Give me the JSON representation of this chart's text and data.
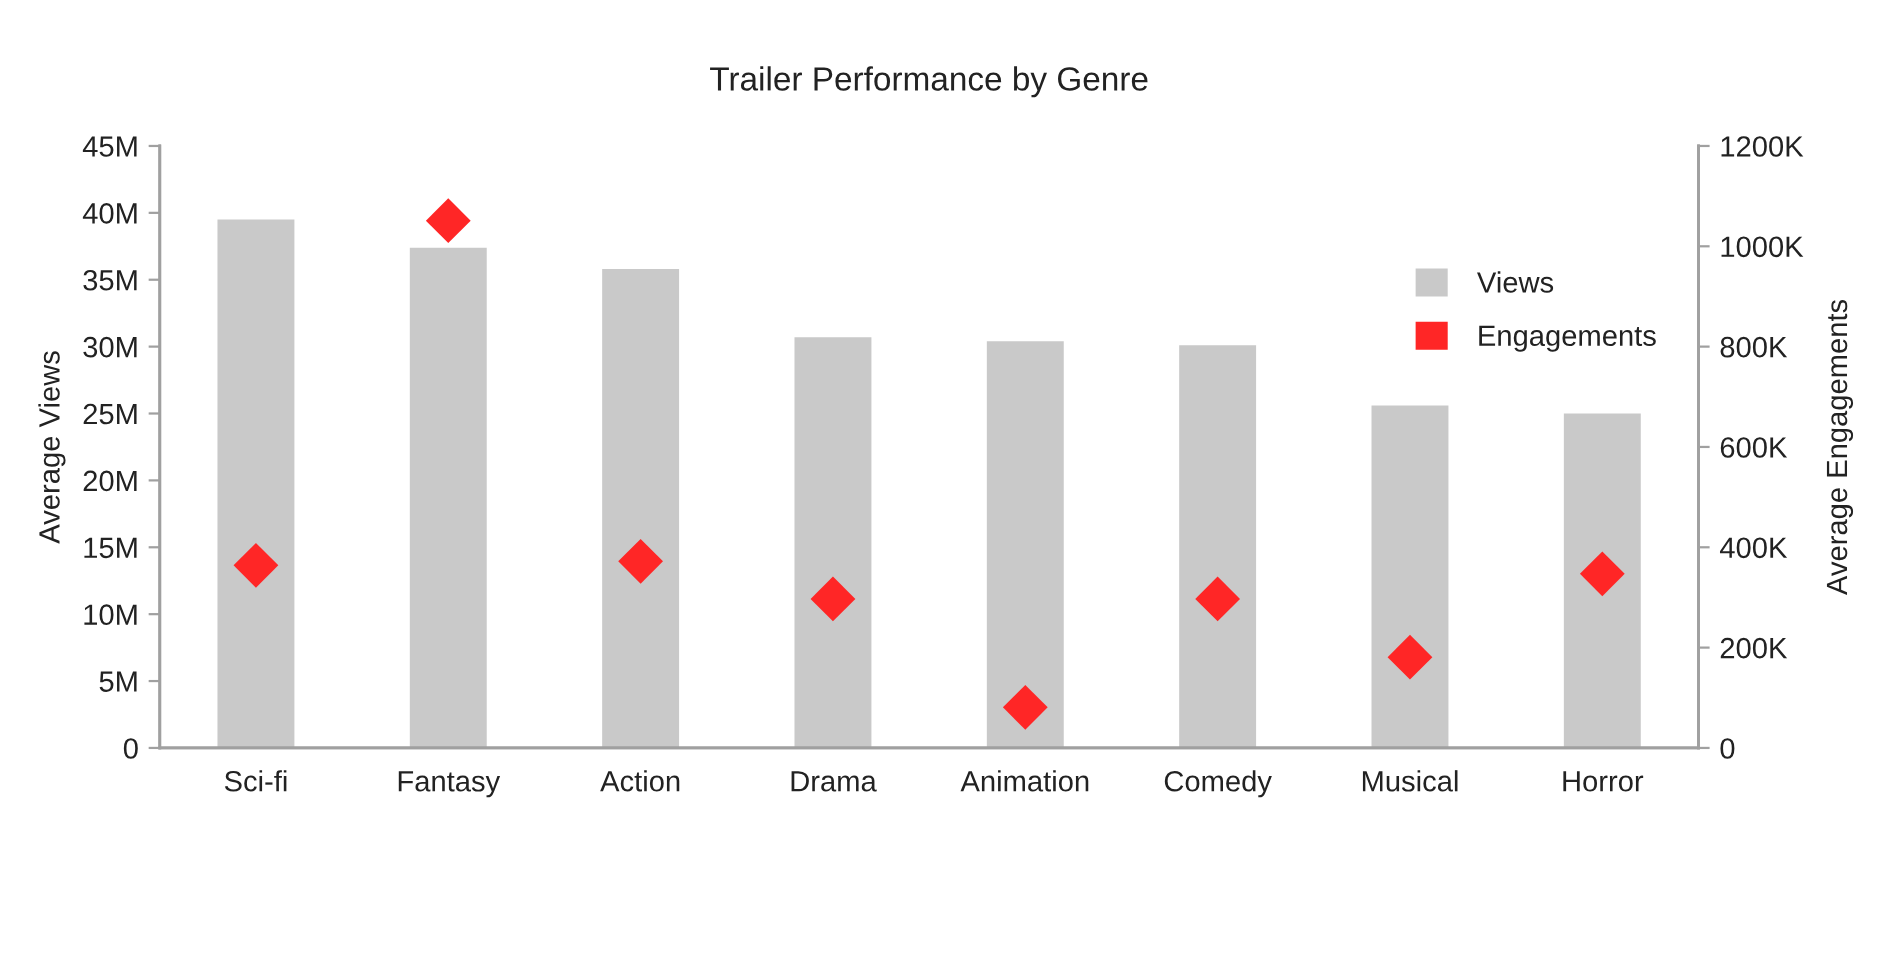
{
  "chart_data": {
    "type": "bar",
    "title": "Trailer Performance by Genre",
    "ylabel": "Average Views",
    "y2label": "Average Engagements",
    "categories": [
      "Sci-fi",
      "Fantasy",
      "Action",
      "Drama",
      "Animation",
      "Comedy",
      "Musical",
      "Horror"
    ],
    "series": [
      {
        "name": "Views",
        "color": "#c9c9c9",
        "values": [
          39.5,
          37.4,
          35.8,
          30.7,
          30.4,
          30.1,
          25.6,
          25.0
        ]
      },
      {
        "name": "Engagements",
        "type": "scatter",
        "axis": "y2",
        "color": "#ff2626",
        "marker": "diamond",
        "values": [
          364,
          1051,
          372,
          297,
          81,
          297,
          181,
          347
        ]
      }
    ],
    "ylim": [
      0,
      45
    ],
    "yticks": [
      {
        "value": 0,
        "label": "0"
      },
      {
        "value": 5,
        "label": "5M"
      },
      {
        "value": 10,
        "label": "10M"
      },
      {
        "value": 15,
        "label": "15M"
      },
      {
        "value": 20,
        "label": "20M"
      },
      {
        "value": 25,
        "label": "25M"
      },
      {
        "value": 30,
        "label": "30M"
      },
      {
        "value": 35,
        "label": "35M"
      },
      {
        "value": 40,
        "label": "40M"
      },
      {
        "value": 45,
        "label": "45M"
      }
    ],
    "y2lim": [
      0,
      1200
    ],
    "y2ticks": [
      {
        "value": 0,
        "label": "0"
      },
      {
        "value": 200,
        "label": "200K"
      },
      {
        "value": 400,
        "label": "400K"
      },
      {
        "value": 600,
        "label": "600K"
      },
      {
        "value": 800,
        "label": "800K"
      },
      {
        "value": 1000,
        "label": "1000K"
      },
      {
        "value": 1200,
        "label": "1200K"
      }
    ],
    "grid": false,
    "legend": "top right"
  }
}
